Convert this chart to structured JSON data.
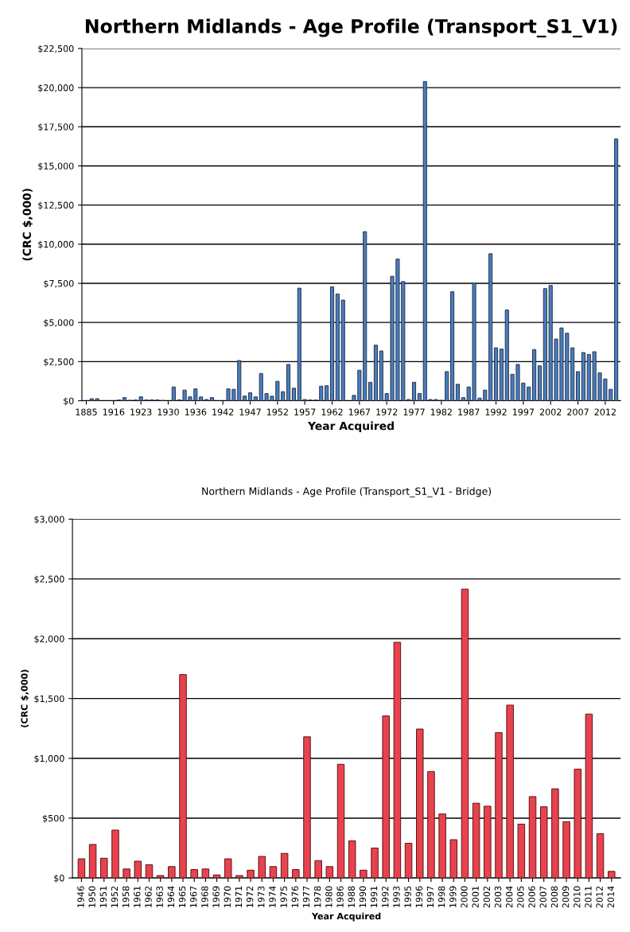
{
  "chart_data": [
    {
      "type": "bar",
      "title": "Northern Midlands - Age Profile (Transport_S1_V1)",
      "xlabel": "Year Acquired",
      "ylabel": "(CRC $,000)",
      "categories": [
        "1885",
        null,
        null,
        null,
        null,
        "1916",
        null,
        null,
        null,
        null,
        "1923",
        null,
        null,
        null,
        null,
        "1930",
        null,
        null,
        null,
        null,
        "1936",
        null,
        null,
        null,
        null,
        "1942",
        null,
        null,
        null,
        null,
        "1947",
        null,
        null,
        null,
        null,
        "1952",
        null,
        null,
        null,
        null,
        "1957",
        null,
        null,
        null,
        null,
        "1962",
        null,
        null,
        null,
        null,
        "1967",
        null,
        null,
        null,
        null,
        "1972",
        null,
        null,
        null,
        null,
        "1977",
        null,
        null,
        null,
        null,
        "1982",
        null,
        null,
        null,
        null,
        "1987",
        null,
        null,
        null,
        null,
        "1992",
        null,
        null,
        null,
        null,
        "1997",
        null,
        null,
        null,
        null,
        "2002",
        null,
        null,
        null,
        null,
        "2007",
        null,
        null,
        null,
        null,
        "2012",
        null,
        null
      ],
      "values": [
        0,
        130,
        130,
        0,
        0,
        0,
        50,
        200,
        30,
        50,
        250,
        60,
        60,
        60,
        20,
        0,
        880,
        60,
        680,
        250,
        760,
        240,
        80,
        200,
        0,
        0,
        760,
        730,
        2570,
        300,
        510,
        250,
        1740,
        460,
        290,
        1240,
        580,
        2320,
        800,
        7190,
        80,
        50,
        50,
        930,
        960,
        7280,
        6820,
        6430,
        0,
        340,
        1950,
        10800,
        1180,
        3550,
        3180,
        460,
        7950,
        9050,
        7610,
        80,
        1180,
        460,
        20390,
        80,
        80,
        30,
        1860,
        6970,
        1050,
        200,
        880,
        7530,
        170,
        680,
        9390,
        3380,
        3300,
        5800,
        1690,
        2320,
        1130,
        880,
        3270,
        2230,
        7160,
        7360,
        3940,
        4650,
        4310,
        3380,
        1860,
        3080,
        2960,
        3130,
        1780,
        1390,
        730,
        16720
      ],
      "color": "#4a7ebb",
      "ylim": [
        0,
        22500
      ],
      "yticks": [
        {
          "value": 0,
          "label": "$0"
        },
        {
          "value": 2500,
          "label": "$2,500"
        },
        {
          "value": 5000,
          "label": "$5,000"
        },
        {
          "value": 7500,
          "label": "$7,500"
        },
        {
          "value": 10000,
          "label": "$10,000"
        },
        {
          "value": 12500,
          "label": "$12,500"
        },
        {
          "value": 15000,
          "label": "$15,000"
        },
        {
          "value": 17500,
          "label": "$17,500"
        },
        {
          "value": 20000,
          "label": "$20,000"
        },
        {
          "value": 22500,
          "label": "$22,500"
        }
      ],
      "grid": "y"
    },
    {
      "type": "bar",
      "title": "Northern Midlands - Age Profile (Transport_S1_V1 - Bridge)",
      "xlabel": "Year Acquired",
      "ylabel": "(CRC $,000)",
      "categories": [
        "1946",
        "1950",
        "1951",
        "1952",
        "1958",
        "1961",
        "1962",
        "1963",
        "1964",
        "1965",
        "1967",
        "1968",
        "1969",
        "1970",
        "1971",
        "1972",
        "1973",
        "1974",
        "1975",
        "1976",
        "1977",
        "1978",
        "1980",
        "1986",
        "1988",
        "1990",
        "1991",
        "1992",
        "1993",
        "1995",
        "1996",
        "1997",
        "1998",
        "1999",
        "2000",
        "2001",
        "2002",
        "2003",
        "2004",
        "2005",
        "2006",
        "2007",
        "2008",
        "2009",
        "2010",
        "2011",
        "2012",
        "2014"
      ],
      "values": [
        160,
        280,
        165,
        400,
        75,
        140,
        110,
        20,
        95,
        1700,
        70,
        75,
        25,
        160,
        20,
        65,
        180,
        95,
        205,
        70,
        1180,
        145,
        95,
        950,
        310,
        65,
        250,
        1355,
        1970,
        290,
        1245,
        890,
        535,
        320,
        2415,
        625,
        600,
        1215,
        1445,
        450,
        680,
        595,
        745,
        470,
        910,
        1370,
        370,
        55
      ],
      "color": "#e8424f",
      "ylim": [
        0,
        3000
      ],
      "yticks": [
        {
          "value": 0,
          "label": "$0"
        },
        {
          "value": 500,
          "label": "$500"
        },
        {
          "value": 1000,
          "label": "$1,000"
        },
        {
          "value": 1500,
          "label": "$1,500"
        },
        {
          "value": 2000,
          "label": "$2,000"
        },
        {
          "value": 2500,
          "label": "$2,500"
        },
        {
          "value": 3000,
          "label": "$3,000"
        }
      ],
      "grid": "y"
    }
  ]
}
